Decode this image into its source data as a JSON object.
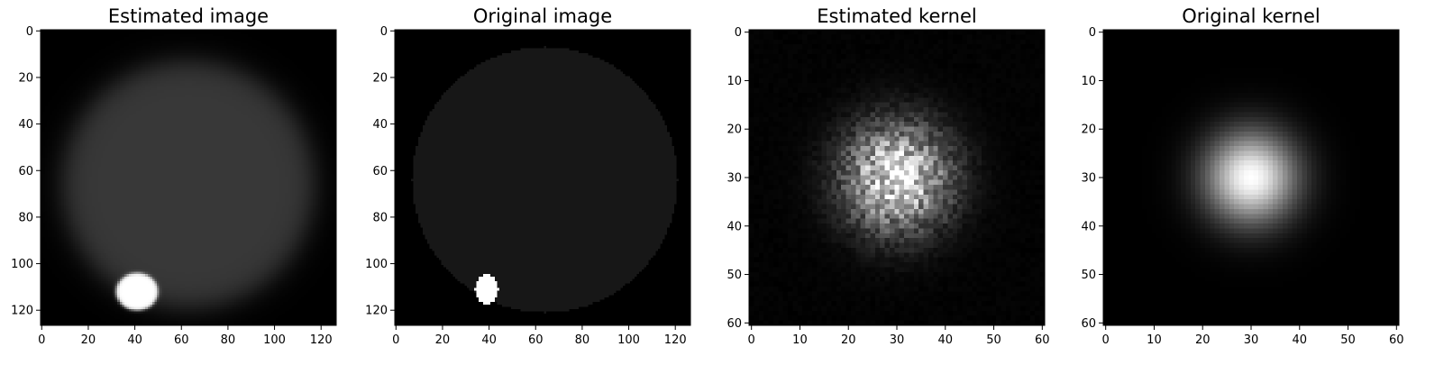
{
  "chart_data": [
    {
      "type": "heatmap",
      "title": "Estimated image",
      "colormap": "gray",
      "extent": [
        -0.5,
        126.5,
        126.5,
        -0.5
      ],
      "x_ticks": [
        0,
        20,
        40,
        60,
        80,
        100,
        120
      ],
      "y_ticks": [
        0,
        20,
        40,
        60,
        80,
        100,
        120
      ],
      "content": {
        "background": 0.0,
        "blobs": [
          {
            "cx": 63,
            "cy": 66,
            "rx": 54,
            "ry": 53,
            "value": 0.22,
            "soft": 10
          },
          {
            "cx": 41,
            "cy": 112,
            "rx": 9,
            "ry": 8,
            "value": 1.0,
            "soft": 1.2
          }
        ]
      }
    },
    {
      "type": "heatmap",
      "title": "Original image",
      "colormap": "gray",
      "extent": [
        -0.5,
        126.5,
        126.5,
        -0.5
      ],
      "x_ticks": [
        0,
        20,
        40,
        60,
        80,
        100,
        120
      ],
      "y_ticks": [
        0,
        20,
        40,
        60,
        80,
        100,
        120
      ],
      "content": {
        "background": 0.0,
        "blobs": [
          {
            "cx": 64,
            "cy": 64,
            "rx": 57,
            "ry": 57,
            "value": 0.09,
            "soft": 0
          },
          {
            "cx": 39,
            "cy": 111,
            "rx": 5,
            "ry": 6.5,
            "value": 1.0,
            "soft": 0
          }
        ]
      }
    },
    {
      "type": "heatmap",
      "title": "Estimated kernel",
      "colormap": "gray",
      "extent": [
        -0.5,
        60.5,
        60.5,
        -0.5
      ],
      "x_ticks": [
        0,
        10,
        20,
        30,
        40,
        50,
        60
      ],
      "y_ticks": [
        0,
        10,
        20,
        30,
        40,
        50,
        60
      ],
      "content": {
        "type": "noisy-gaussian",
        "center": [
          30,
          30
        ],
        "sigma": 7.5,
        "peak": 0.9,
        "noise": 0.45
      }
    },
    {
      "type": "heatmap",
      "title": "Original kernel",
      "colormap": "gray",
      "extent": [
        -0.5,
        60.5,
        60.5,
        -0.5
      ],
      "x_ticks": [
        0,
        10,
        20,
        30,
        40,
        50,
        60
      ],
      "y_ticks": [
        0,
        10,
        20,
        30,
        40,
        50,
        60
      ],
      "content": {
        "type": "gaussian",
        "center": [
          30,
          30
        ],
        "sigma": 6.5,
        "peak": 1.0
      }
    }
  ]
}
